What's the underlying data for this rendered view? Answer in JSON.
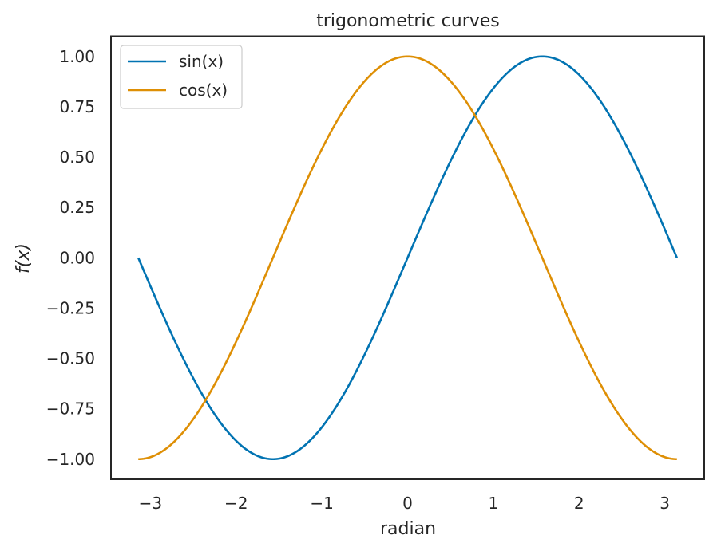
{
  "chart_data": {
    "type": "line",
    "title": "trigonometric curves",
    "xlabel": "radian",
    "ylabel": "f(x)",
    "xlim": [
      -3.46,
      3.46
    ],
    "ylim": [
      -1.1,
      1.1
    ],
    "grid": false,
    "legend_placement": "upper-left",
    "x_ticks": [
      -3,
      -2,
      -1,
      0,
      1,
      2,
      3
    ],
    "x_tick_labels": [
      "−3",
      "−2",
      "−1",
      "0",
      "1",
      "2",
      "3"
    ],
    "y_ticks": [
      1.0,
      0.75,
      0.5,
      0.25,
      0.0,
      -0.25,
      -0.5,
      -0.75,
      -1.0
    ],
    "y_tick_labels": [
      "1.00",
      "0.75",
      "0.50",
      "0.25",
      "0.00",
      "−0.25",
      "−0.50",
      "−0.75",
      "−1.00"
    ],
    "x_domain": [
      -3.14159,
      3.14159
    ],
    "series": [
      {
        "name": "sin(x)",
        "function": "sin",
        "color": "#0173b2"
      },
      {
        "name": "cos(x)",
        "function": "cos",
        "color": "#de8f05"
      }
    ]
  }
}
